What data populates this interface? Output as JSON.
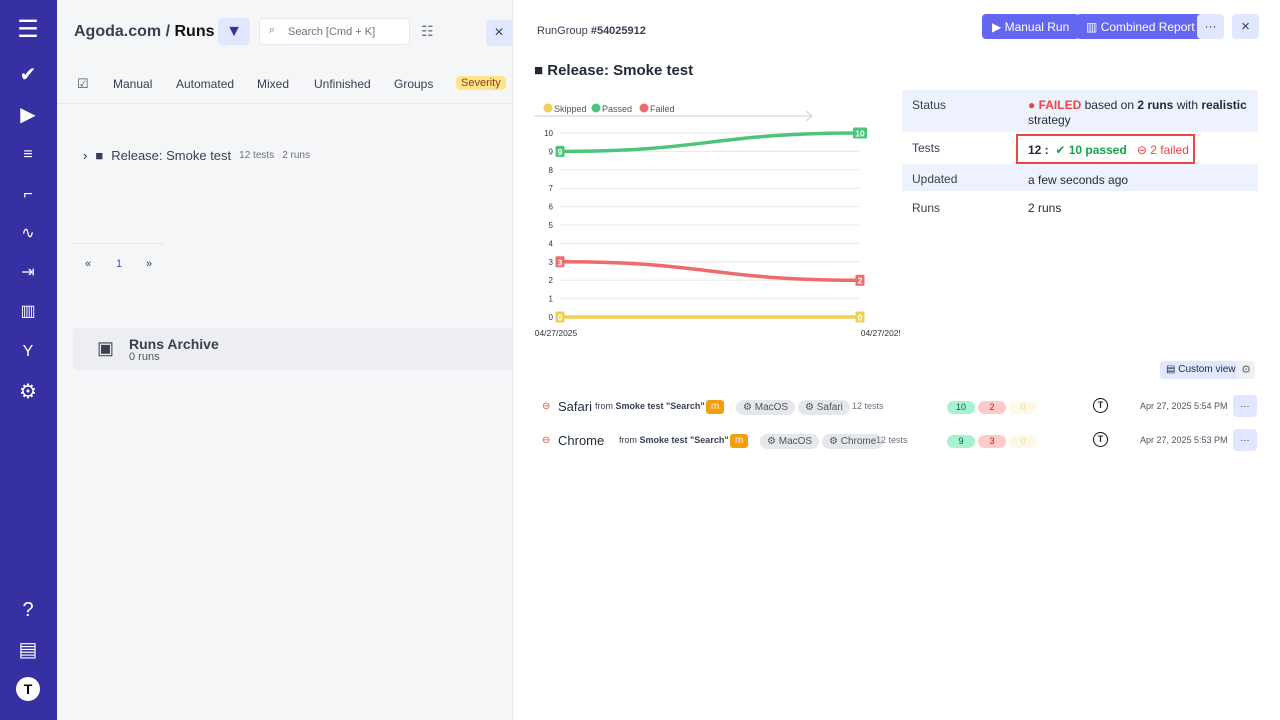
{
  "sidebar": {
    "icons": [
      "menu-icon",
      "check-icon",
      "play-icon",
      "list-check-icon",
      "steps-icon",
      "pulse-icon",
      "import-icon",
      "analytics-icon",
      "branch-icon",
      "gear-icon",
      "help-icon",
      "folders-icon",
      "user-avatar-icon"
    ]
  },
  "header": {
    "project": "Agoda.com",
    "separator": "/",
    "page": "Runs",
    "search_placeholder": "Search [Cmd + K]"
  },
  "tabs": [
    "Manual",
    "Automated",
    "Mixed",
    "Unfinished",
    "Groups",
    "Severity"
  ],
  "tree": {
    "group_name": "Release: Smoke test",
    "tests": "12 tests",
    "runs": "2 runs"
  },
  "pagination": {
    "prev": "«",
    "page": "1",
    "next": "»"
  },
  "archive": {
    "title": "Runs Archive",
    "count": "0 runs"
  },
  "detail": {
    "rungroup_label": "RunGroup",
    "rungroup_id": "#54025912",
    "manual_run": "Manual Run",
    "combined_report": "Combined Report",
    "more": "···",
    "close": "×",
    "title": "Release: Smoke test",
    "status_label": "Status",
    "status_value": "FAILED",
    "status_text1": "based on",
    "status_runs": "2 runs",
    "status_text2": "with",
    "status_strategy": "realistic",
    "status_text3": "strategy",
    "tests_label": "Tests",
    "tests_total": "12 :",
    "tests_passed": "10 passed",
    "tests_failed": "2 failed",
    "updated_label": "Updated",
    "updated_value": "a few seconds ago",
    "runs_label": "Runs",
    "runs_value": "2 runs",
    "custom_view": "Custom view"
  },
  "colors": {
    "passed": "#4cc47c",
    "failed": "#ef6b6b",
    "skipped": "#f0cf55",
    "accent": "#6366f1",
    "sidebar": "#3730a3"
  },
  "chart_data": {
    "type": "line",
    "categories": [
      "04/27/2025",
      "04/27/2025"
    ],
    "yticks": [
      0,
      1,
      2,
      3,
      4,
      5,
      6,
      7,
      8,
      9,
      10
    ],
    "ylim": [
      0,
      10
    ],
    "legend_position": "top-left",
    "grid": true,
    "series": [
      {
        "name": "Skipped",
        "values": [
          0,
          0
        ],
        "color": "#f0cf55"
      },
      {
        "name": "Passed",
        "values": [
          9,
          10
        ],
        "color": "#4cc47c"
      },
      {
        "name": "Failed",
        "values": [
          3,
          2
        ],
        "color": "#ef6b6b"
      }
    ]
  },
  "runs": [
    {
      "name": "Safari",
      "from": "from",
      "source": "Smoke test \"Search\"",
      "badge": "m",
      "env1": "MacOS",
      "env2": "Safari",
      "tests": "12 tests",
      "passed": "10",
      "failed": "2",
      "skipped": "0",
      "date": "Apr 27, 2025 5:54 PM"
    },
    {
      "name": "Chrome",
      "from": "from",
      "source": "Smoke test \"Search\"",
      "badge": "m",
      "env1": "MacOS",
      "env2": "Chrome",
      "tests": "12 tests",
      "passed": "9",
      "failed": "3",
      "skipped": "0",
      "date": "Apr 27, 2025 5:53 PM"
    }
  ]
}
